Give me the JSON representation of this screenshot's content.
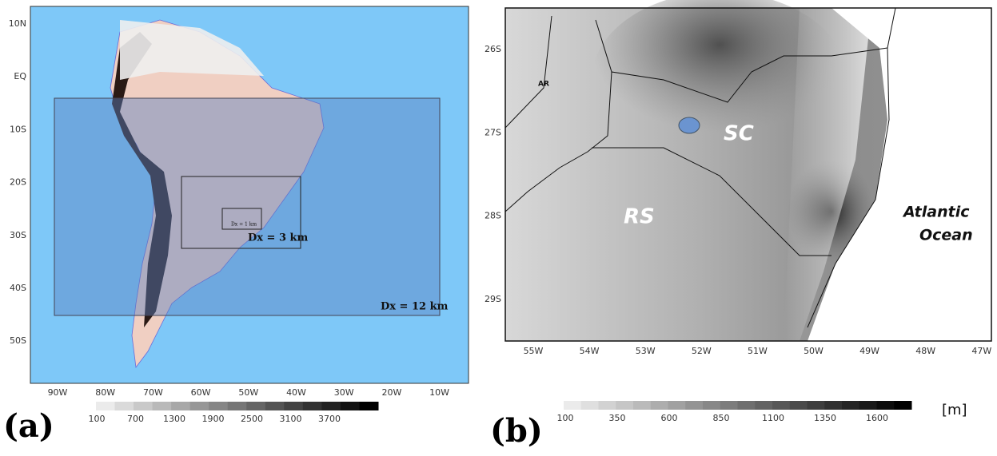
{
  "panel_a": {
    "label": "(a)",
    "lat_labels": [
      "10N",
      "EQ",
      "10S",
      "20S",
      "30S",
      "40S",
      "50S"
    ],
    "lon_labels": [
      "90W",
      "80W",
      "70W",
      "60W",
      "50W",
      "40W",
      "30W",
      "20W",
      "10W"
    ],
    "domains": [
      "Dx = 12 km",
      "Dx = 3 km",
      "Dx = 1 km"
    ],
    "colorbar": [
      100,
      700,
      1300,
      1900,
      2500,
      3100,
      3700
    ]
  },
  "panel_b": {
    "label": "(b)",
    "lat_labels": [
      "26S",
      "27S",
      "28S",
      "29S"
    ],
    "lon_labels": [
      "55W",
      "54W",
      "53W",
      "52W",
      "51W",
      "50W",
      "49W",
      "48W",
      "47W"
    ],
    "places": [
      "AR",
      "SC",
      "RS",
      "Atlantic",
      "Ocean"
    ],
    "colorbar": [
      100,
      350,
      600,
      850,
      1100,
      1350,
      1600
    ],
    "unit": "[m]"
  }
}
